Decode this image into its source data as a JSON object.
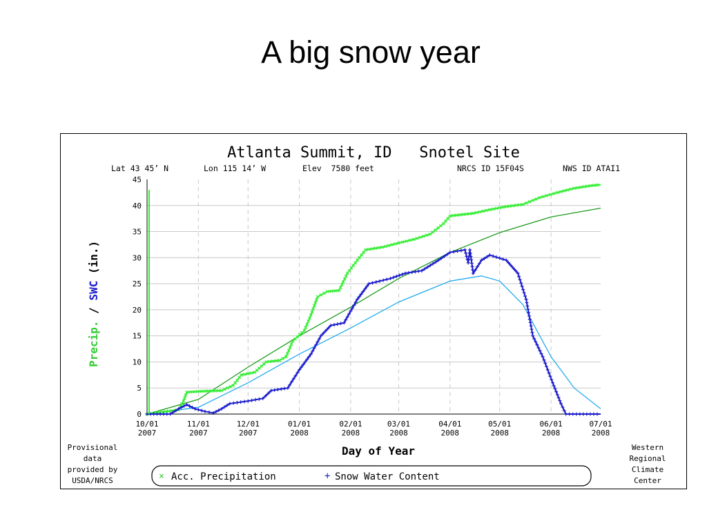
{
  "slide": {
    "title": "A big snow year"
  },
  "chart_data": {
    "type": "line",
    "title": "Atlanta Summit, ID   Snotel Site",
    "subtitle": {
      "lat": "Lat 43 45’ N",
      "lon": "Lon 115 14’ W",
      "elev": "Elev  7580 feet",
      "nrcs_id": "NRCS ID 15F04S",
      "nws_id": "NWS ID ATAI1"
    },
    "ylabel_precip": "Precip.",
    "ylabel_sep": " / ",
    "ylabel_swc": "SWC",
    "ylabel_unit": " (in.)",
    "xlabel": "Day of Year",
    "ylim": [
      0,
      45
    ],
    "yticks": [
      0,
      5,
      10,
      15,
      20,
      25,
      30,
      35,
      40,
      45
    ],
    "xlim": [
      "2007-10-01",
      "2008-07-01"
    ],
    "xticks": [
      {
        "date": "2007-10-01",
        "line1": "10/01",
        "line2": "2007"
      },
      {
        "date": "2007-11-01",
        "line1": "11/01",
        "line2": "2007"
      },
      {
        "date": "2007-12-01",
        "line1": "12/01",
        "line2": "2007"
      },
      {
        "date": "2008-01-01",
        "line1": "01/01",
        "line2": "2008"
      },
      {
        "date": "2008-02-01",
        "line1": "02/01",
        "line2": "2008"
      },
      {
        "date": "2008-03-01",
        "line1": "03/01",
        "line2": "2008"
      },
      {
        "date": "2008-04-01",
        "line1": "04/01",
        "line2": "2008"
      },
      {
        "date": "2008-05-01",
        "line1": "05/01",
        "line2": "2008"
      },
      {
        "date": "2008-06-01",
        "line1": "06/01",
        "line2": "2008"
      },
      {
        "date": "2008-07-01",
        "line1": "07/01",
        "line2": "2008"
      }
    ],
    "grid": true,
    "footer": {
      "left": [
        "Provisional",
        "data",
        "provided by",
        "USDA/NRCS"
      ],
      "right": [
        "Western",
        "Regional",
        "Climate",
        "Center"
      ]
    },
    "legend_position": "bottom",
    "series": [
      {
        "name": "Acc. Precipitation",
        "color": "#33ee33",
        "marker": "x",
        "points": [
          [
            "2007-10-01",
            0
          ],
          [
            "2007-10-10",
            0.4
          ],
          [
            "2007-10-20",
            0.8
          ],
          [
            "2007-10-23",
            2.5
          ],
          [
            "2007-10-25",
            4.2
          ],
          [
            "2007-11-05",
            4.4
          ],
          [
            "2007-11-15",
            4.5
          ],
          [
            "2007-11-22",
            5.5
          ],
          [
            "2007-11-27",
            7.5
          ],
          [
            "2007-12-05",
            8.0
          ],
          [
            "2007-12-12",
            10.0
          ],
          [
            "2007-12-20",
            10.3
          ],
          [
            "2007-12-24",
            11.0
          ],
          [
            "2007-12-28",
            14.0
          ],
          [
            "2008-01-04",
            16.0
          ],
          [
            "2008-01-08",
            19.0
          ],
          [
            "2008-01-12",
            22.5
          ],
          [
            "2008-01-18",
            23.5
          ],
          [
            "2008-01-25",
            23.7
          ],
          [
            "2008-01-30",
            27.0
          ],
          [
            "2008-02-05",
            29.5
          ],
          [
            "2008-02-10",
            31.5
          ],
          [
            "2008-02-20",
            32.0
          ],
          [
            "2008-03-01",
            32.8
          ],
          [
            "2008-03-10",
            33.5
          ],
          [
            "2008-03-20",
            34.5
          ],
          [
            "2008-03-28",
            36.5
          ],
          [
            "2008-04-01",
            38.0
          ],
          [
            "2008-04-15",
            38.5
          ],
          [
            "2008-04-25",
            39.2
          ],
          [
            "2008-05-05",
            39.8
          ],
          [
            "2008-05-15",
            40.2
          ],
          [
            "2008-05-25",
            41.5
          ],
          [
            "2008-06-05",
            42.5
          ],
          [
            "2008-06-15",
            43.3
          ],
          [
            "2008-06-25",
            43.8
          ],
          [
            "2008-07-01",
            44.0
          ]
        ]
      },
      {
        "name": "Snow Water Content",
        "color": "#1a1acc",
        "marker": "+",
        "points": [
          [
            "2007-10-01",
            0
          ],
          [
            "2007-10-15",
            0
          ],
          [
            "2007-10-20",
            1.0
          ],
          [
            "2007-10-25",
            1.8
          ],
          [
            "2007-10-30",
            1.0
          ],
          [
            "2007-11-05",
            0.5
          ],
          [
            "2007-11-10",
            0.2
          ],
          [
            "2007-11-15",
            1.0
          ],
          [
            "2007-11-20",
            2.0
          ],
          [
            "2007-12-01",
            2.5
          ],
          [
            "2007-12-10",
            3.0
          ],
          [
            "2007-12-15",
            4.5
          ],
          [
            "2007-12-25",
            5.0
          ],
          [
            "2008-01-01",
            8.5
          ],
          [
            "2008-01-08",
            11.5
          ],
          [
            "2008-01-14",
            15.0
          ],
          [
            "2008-01-20",
            17.0
          ],
          [
            "2008-01-28",
            17.5
          ],
          [
            "2008-02-05",
            22.0
          ],
          [
            "2008-02-12",
            25.0
          ],
          [
            "2008-02-25",
            26.0
          ],
          [
            "2008-03-05",
            27.0
          ],
          [
            "2008-03-15",
            27.5
          ],
          [
            "2008-03-25",
            29.5
          ],
          [
            "2008-04-01",
            31.0
          ],
          [
            "2008-04-10",
            31.5
          ],
          [
            "2008-04-12",
            29.0
          ],
          [
            "2008-04-13",
            31.5
          ],
          [
            "2008-04-15",
            27.0
          ],
          [
            "2008-04-20",
            29.5
          ],
          [
            "2008-04-25",
            30.5
          ],
          [
            "2008-05-05",
            29.5
          ],
          [
            "2008-05-12",
            27.0
          ],
          [
            "2008-05-17",
            22.0
          ],
          [
            "2008-05-21",
            15.0
          ],
          [
            "2008-05-27",
            11.0
          ],
          [
            "2008-06-02",
            6.0
          ],
          [
            "2008-06-07",
            2.0
          ],
          [
            "2008-06-10",
            0.0
          ],
          [
            "2008-07-01",
            0.0
          ]
        ]
      },
      {
        "name": "",
        "color": "#1a9a1a",
        "marker": "none",
        "points": [
          [
            "2007-10-01",
            0
          ],
          [
            "2007-11-01",
            2.8
          ],
          [
            "2007-12-01",
            9.0
          ],
          [
            "2008-01-01",
            15.0
          ],
          [
            "2008-02-01",
            20.5
          ],
          [
            "2008-03-01",
            26.0
          ],
          [
            "2008-04-01",
            31.0
          ],
          [
            "2008-05-01",
            34.8
          ],
          [
            "2008-06-01",
            37.8
          ],
          [
            "2008-07-01",
            39.5
          ]
        ]
      },
      {
        "name": "",
        "color": "#22aaee",
        "marker": "none",
        "points": [
          [
            "2007-10-01",
            0
          ],
          [
            "2007-11-01",
            1.3
          ],
          [
            "2007-12-01",
            6.0
          ],
          [
            "2008-01-01",
            11.5
          ],
          [
            "2008-02-01",
            16.5
          ],
          [
            "2008-03-01",
            21.5
          ],
          [
            "2008-04-01",
            25.5
          ],
          [
            "2008-04-20",
            26.5
          ],
          [
            "2008-05-01",
            25.5
          ],
          [
            "2008-05-15",
            21.0
          ],
          [
            "2008-06-01",
            11.0
          ],
          [
            "2008-06-15",
            5.0
          ],
          [
            "2008-07-01",
            1.0
          ]
        ]
      }
    ]
  }
}
